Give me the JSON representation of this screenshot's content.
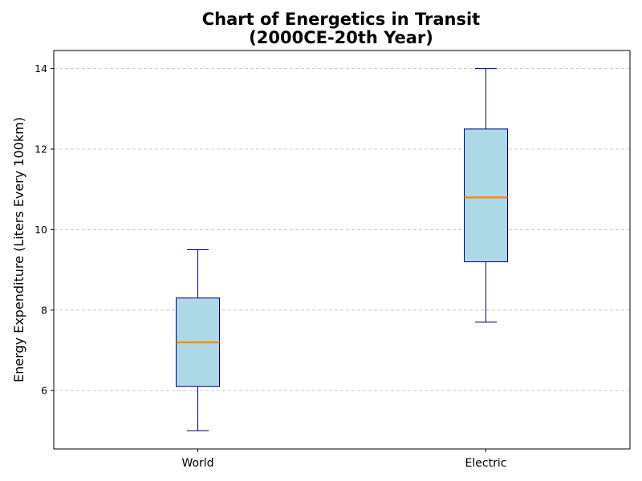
{
  "chart_data": {
    "type": "box",
    "title_line1": "Chart of Energetics in Transit",
    "title_line2": "(2000CE-20th Year)",
    "xlabel": "",
    "ylabel": "Energy Expenditure (Liters Every 100km)",
    "ylim": [
      4.55,
      14.45
    ],
    "yticks": [
      6,
      8,
      10,
      12,
      14
    ],
    "grid": true,
    "categories": [
      "World",
      "Electric"
    ],
    "boxes": [
      {
        "label": "World",
        "min": 5.0,
        "q1": 6.1,
        "median": 7.2,
        "q3": 8.3,
        "max": 9.5
      },
      {
        "label": "Electric",
        "min": 7.7,
        "q1": 9.2,
        "median": 10.8,
        "q3": 12.5,
        "max": 14.0
      }
    ],
    "colors": {
      "box_fill": "#add8e6",
      "box_edge": "#000080",
      "whisker": "#000080",
      "median": "#ff8c00",
      "grid": "#b0b0b0"
    }
  }
}
